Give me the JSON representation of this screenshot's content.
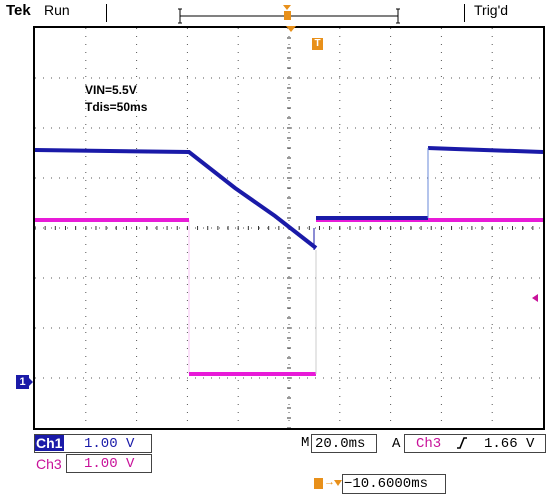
{
  "header": {
    "brand": "Tek",
    "run_state": "Run",
    "trigger_state": "Trig'd"
  },
  "annotations": {
    "line1": "VIN=5.5V",
    "line2": "Tdis=50ms"
  },
  "channels": [
    {
      "label": "Ch1",
      "scale": "1.00 V",
      "color": "#1a1aa8"
    },
    {
      "label": "Ch3",
      "scale": "1.00 V",
      "color": "#c8129a"
    }
  ],
  "timebase": {
    "prefix": "M",
    "value": "20.0ms"
  },
  "trigger": {
    "mode": "A",
    "source": "Ch3",
    "level": "1.66 V"
  },
  "trigger_position": {
    "value": "−10.6000ms"
  },
  "markers": {
    "trigger": "T",
    "ch1": "1"
  },
  "colors": {
    "ch1": "#1a1aa8",
    "ch3": "#e81ad8",
    "trigger": "#e8901a",
    "grid": "#555555"
  }
}
